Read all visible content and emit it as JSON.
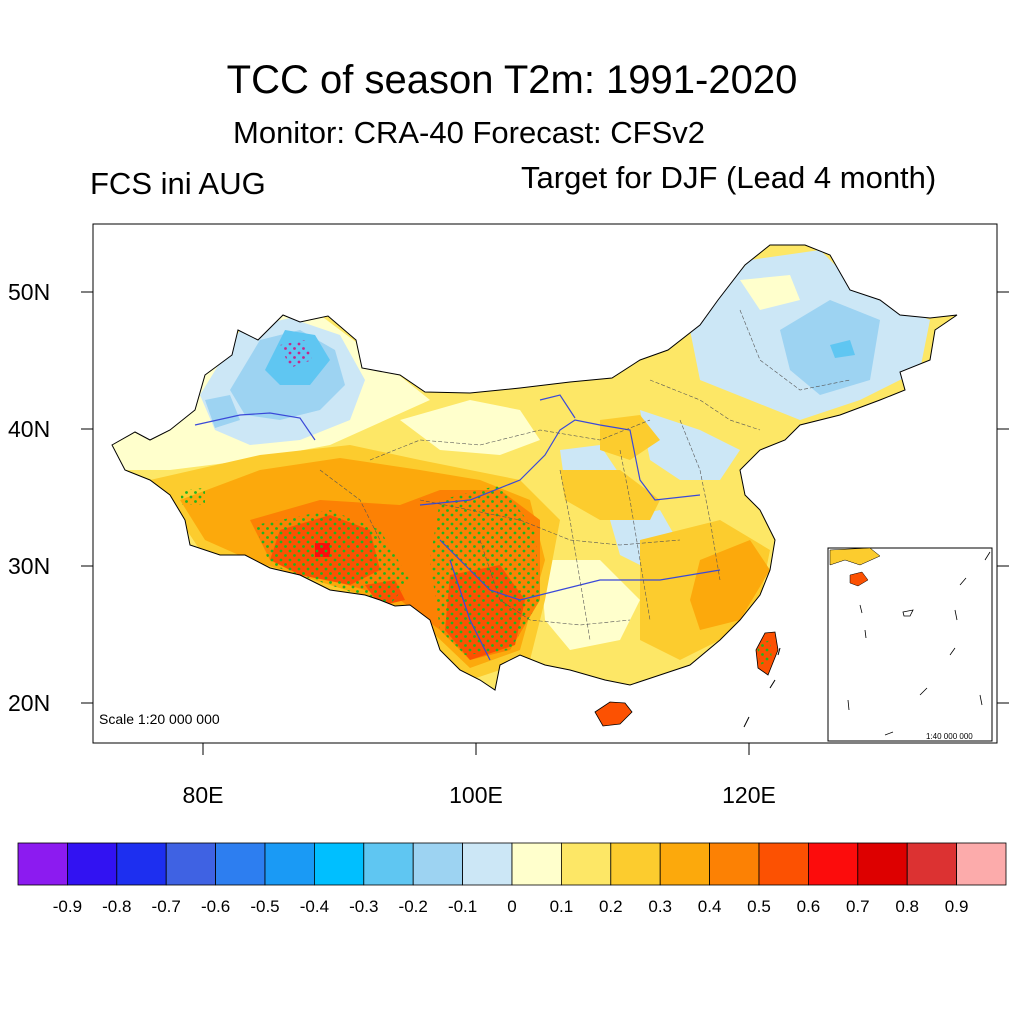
{
  "title": "TCC of season T2m: 1991-2020",
  "subtitle": "Monitor: CRA-40   Forecast: CFSv2",
  "left_label": "FCS ini AUG",
  "right_label": "Target for DJF (Lead 4 month)",
  "lat_labels": [
    "50N",
    "40N",
    "30N",
    "20N"
  ],
  "lon_labels": [
    "80E",
    "100E",
    "120E"
  ],
  "scale_label": "Scale 1:20 000 000",
  "inset_scale_label": "1:40 000 000",
  "colorbar": {
    "labels": [
      "-0.9",
      "-0.8",
      "-0.7",
      "-0.6",
      "-0.5",
      "-0.4",
      "-0.3",
      "-0.2",
      "-0.1",
      "0",
      "0.1",
      "0.2",
      "0.3",
      "0.4",
      "0.5",
      "0.6",
      "0.7",
      "0.8",
      "0.9"
    ],
    "colors": [
      "#8c1bf0",
      "#3212f2",
      "#1d2ff0",
      "#3f62e3",
      "#2d7ef0",
      "#1a9af5",
      "#00bfff",
      "#5fc6f2",
      "#9dd3f2",
      "#cce7f6",
      "#ffffcc",
      "#fde766",
      "#fccc2e",
      "#fca90c",
      "#fc8104",
      "#fc5102",
      "#fc0c0c",
      "#dd0000",
      "#dc3232",
      "#fcabab"
    ]
  },
  "map_colors": {
    "ocean": "#ffffff",
    "default_fill": "#fde766",
    "boundary": "#000000",
    "river": "#3a49d8",
    "province": "#555555",
    "stipple": "#1fb41f",
    "stipple_strong": "#c22a8c"
  }
}
